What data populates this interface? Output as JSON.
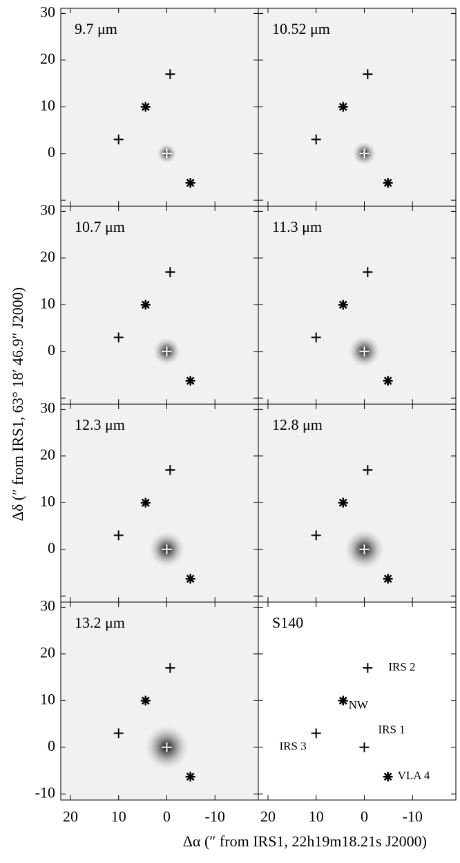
{
  "chart_data": {
    "type": "scatter",
    "x_label": "Δα (″ from IRS1, 22h19m18.21s J2000)",
    "y_label": "Δδ (″ from IRS1, 63° 18′ 46.9″ J2000)",
    "xlim": [
      22,
      -19
    ],
    "ylim": [
      -11.3,
      31.1
    ],
    "xticks": [
      20,
      10,
      0,
      -10
    ],
    "yticks": [
      -10,
      0,
      10,
      20,
      30
    ],
    "panels": [
      {
        "title": "9.7 μm",
        "image": true
      },
      {
        "title": "10.52 μm",
        "image": true
      },
      {
        "title": "10.7 μm",
        "image": true
      },
      {
        "title": "11.3 μm",
        "image": true
      },
      {
        "title": "12.3 μm",
        "image": true
      },
      {
        "title": "12.8 μm",
        "image": true
      },
      {
        "title": "13.2 μm",
        "image": true
      },
      {
        "title": "S140",
        "image": false
      }
    ],
    "sources": {
      "names": [
        "IRS 2",
        "NW",
        "IRS 3",
        "IRS 1",
        "VLA 4"
      ],
      "x": [
        -0.7,
        4.4,
        10,
        0,
        -4.9
      ],
      "y": [
        17,
        10,
        3,
        0,
        -6.3
      ],
      "markers": [
        "plus",
        "asterisk",
        "plus",
        "plus",
        "asterisk"
      ]
    },
    "color": "#000000",
    "glow_marker_color": "#ffffff"
  }
}
